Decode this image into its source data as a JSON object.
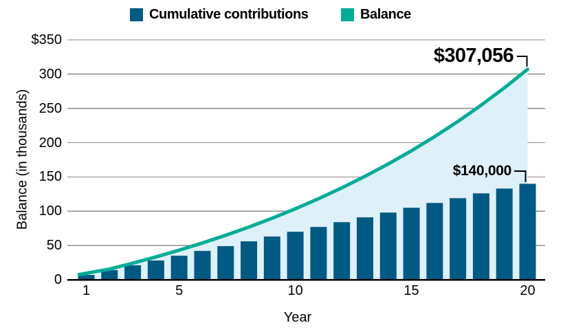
{
  "legend": {
    "items": [
      {
        "label": "Cumulative contributions",
        "color": "#005a84",
        "swatch": "square"
      },
      {
        "label": "Balance",
        "color": "#00ad97",
        "swatch": "square"
      }
    ]
  },
  "chart_data": {
    "type": "combo-bar-line",
    "x": [
      1,
      2,
      3,
      4,
      5,
      6,
      7,
      8,
      9,
      10,
      11,
      12,
      13,
      14,
      15,
      16,
      17,
      18,
      19,
      20
    ],
    "series": [
      {
        "name": "Cumulative contributions",
        "type": "bar",
        "color": "#005a84",
        "units": "thousands of dollars",
        "values": [
          7,
          14,
          21,
          28,
          35,
          42,
          49,
          56,
          63,
          70,
          77,
          84,
          91,
          98,
          105,
          112,
          119,
          126,
          133,
          140
        ]
      },
      {
        "name": "Balance",
        "type": "line",
        "color": "#00ad97",
        "area_color": "#def0fa",
        "units": "thousands of dollars",
        "values": [
          7.5,
          15.5,
          24.1,
          33.3,
          43.1,
          53.6,
          64.8,
          76.8,
          89.7,
          103.5,
          118.2,
          134.0,
          150.9,
          168.9,
          188.2,
          208.9,
          231.0,
          254.7,
          280.0,
          307.056
        ]
      }
    ],
    "title": "",
    "xlabel": "Year",
    "ylabel": "Balance (in thousands)",
    "ylim": [
      0,
      350
    ],
    "yticks": {
      "values": [
        350,
        300,
        250,
        200,
        150,
        100,
        50,
        0
      ],
      "labels": [
        "$350",
        "300",
        "250",
        "200",
        "150",
        "100",
        "50",
        "0"
      ]
    },
    "xticks": {
      "values": [
        1,
        5,
        10,
        15,
        20
      ],
      "labels": [
        "1",
        "5",
        "10",
        "15",
        "20"
      ]
    },
    "grid": "horizontal",
    "legend_position": "top",
    "annotations": [
      {
        "text": "$307,056",
        "series": "Balance",
        "x": 20
      },
      {
        "text": "$140,000",
        "series": "Cumulative contributions",
        "x": 20
      }
    ]
  },
  "colors": {
    "gridline": "#8c8c8c",
    "axis": "#000000",
    "text": "#000000",
    "background": "#ffffff"
  }
}
